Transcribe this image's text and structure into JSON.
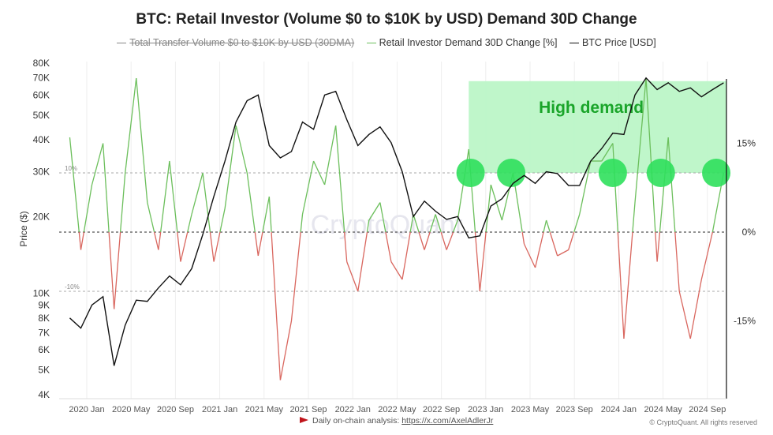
{
  "chart_data": {
    "type": "line",
    "title": "BTC: Retail Investor (Volume $0 to $10K by USD) Demand 30D Change",
    "legend": [
      {
        "name": "Total Transfer Volume  $0 to $10K by USD (30DMA)",
        "color": "#888888",
        "hidden": true
      },
      {
        "name": "Retail Investor Demand 30D Change [%]",
        "color": "#6cbf5c"
      },
      {
        "name": "BTC Price [USD]",
        "color": "#111111"
      }
    ],
    "legend_position": "top",
    "ylabel": "Price ($)",
    "y_scale": "log",
    "ylim": [
      4000,
      80000
    ],
    "y_ticks": [
      "80K",
      "70K",
      "60K",
      "50K",
      "40K",
      "30K",
      "20K",
      "10K",
      "9K",
      "8K",
      "7K",
      "6K",
      "5K",
      "4K"
    ],
    "y_tick_values": [
      80000,
      70000,
      60000,
      50000,
      40000,
      30000,
      20000,
      10000,
      9000,
      8000,
      7000,
      6000,
      5000,
      4000
    ],
    "y2lim": [
      -24,
      28
    ],
    "y2_ticks": [
      "15%",
      "0%",
      "-15%"
    ],
    "y2_tick_values": [
      15,
      0,
      -15
    ],
    "reference_lines": [
      {
        "value": 10,
        "label": "10%"
      },
      {
        "value": 0,
        "label": ""
      },
      {
        "value": -10,
        "label": "-10%"
      }
    ],
    "x_ticks": [
      "2020 Jan",
      "2020 May",
      "2020 Sep",
      "2021 Jan",
      "2021 May",
      "2021 Sep",
      "2022 Jan",
      "2022 May",
      "2022 Sep",
      "2023 Jan",
      "2023 May",
      "2023 Sep",
      "2024 Jan",
      "2024 May",
      "2024 Sep"
    ],
    "x_tick_dates": [
      "2020-01",
      "2020-05",
      "2020-09",
      "2021-01",
      "2021-05",
      "2021-09",
      "2022-01",
      "2022-05",
      "2022-09",
      "2023-01",
      "2023-05",
      "2023-09",
      "2024-01",
      "2024-05",
      "2024-09"
    ],
    "xlim": [
      "2019-11-15",
      "2024-10-15"
    ],
    "positive_color": "#6cbf5c",
    "negative_color": "#d9675f",
    "btc_price": {
      "dates": [
        "2019-11",
        "2019-12",
        "2020-01",
        "2020-02",
        "2020-03",
        "2020-04",
        "2020-05",
        "2020-06",
        "2020-07",
        "2020-08",
        "2020-09",
        "2020-10",
        "2020-11",
        "2020-12",
        "2021-01",
        "2021-02",
        "2021-03",
        "2021-04",
        "2021-05",
        "2021-06",
        "2021-07",
        "2021-08",
        "2021-09",
        "2021-10",
        "2021-11",
        "2021-12",
        "2022-01",
        "2022-02",
        "2022-03",
        "2022-04",
        "2022-05",
        "2022-06",
        "2022-07",
        "2022-08",
        "2022-09",
        "2022-10",
        "2022-11",
        "2022-12",
        "2023-01",
        "2023-02",
        "2023-03",
        "2023-04",
        "2023-05",
        "2023-06",
        "2023-07",
        "2023-08",
        "2023-09",
        "2023-10",
        "2023-11",
        "2023-12",
        "2024-01",
        "2024-02",
        "2024-03",
        "2024-04",
        "2024-05",
        "2024-06",
        "2024-07",
        "2024-08",
        "2024-09",
        "2024-10"
      ],
      "values": [
        8000,
        7300,
        9000,
        9700,
        5200,
        7500,
        9400,
        9300,
        10500,
        11700,
        10800,
        12500,
        17000,
        24000,
        33000,
        47000,
        57000,
        60000,
        38000,
        34000,
        36000,
        47000,
        44000,
        60000,
        62000,
        48000,
        38000,
        42000,
        45000,
        39000,
        30000,
        20000,
        23000,
        21000,
        19500,
        20000,
        16500,
        16800,
        22000,
        23500,
        27000,
        29000,
        27000,
        30000,
        29500,
        26500,
        26500,
        33000,
        37000,
        42500,
        42000,
        60000,
        70000,
        63000,
        67000,
        62000,
        64000,
        59000,
        63000,
        67000
      ]
    },
    "demand_change": {
      "dates": [
        "2019-11",
        "2019-12",
        "2020-01",
        "2020-02",
        "2020-03",
        "2020-04",
        "2020-05",
        "2020-06",
        "2020-07",
        "2020-08",
        "2020-09",
        "2020-10",
        "2020-11",
        "2020-12",
        "2021-01",
        "2021-02",
        "2021-03",
        "2021-04",
        "2021-05",
        "2021-06",
        "2021-07",
        "2021-08",
        "2021-09",
        "2021-10",
        "2021-11",
        "2021-12",
        "2022-01",
        "2022-02",
        "2022-03",
        "2022-04",
        "2022-05",
        "2022-06",
        "2022-07",
        "2022-08",
        "2022-09",
        "2022-10",
        "2022-11",
        "2022-12",
        "2023-01",
        "2023-02",
        "2023-03",
        "2023-04",
        "2023-05",
        "2023-06",
        "2023-07",
        "2023-08",
        "2023-09",
        "2023-10",
        "2023-11",
        "2023-12",
        "2024-01",
        "2024-02",
        "2024-03",
        "2024-04",
        "2024-05",
        "2024-06",
        "2024-07",
        "2024-08",
        "2024-09",
        "2024-10"
      ],
      "values": [
        16,
        -3,
        8,
        15,
        -13,
        10,
        26,
        5,
        -3,
        12,
        -5,
        3,
        10,
        -5,
        4,
        18,
        10,
        -4,
        6,
        -25,
        -15,
        3,
        12,
        8,
        18,
        -5,
        -10,
        2,
        5,
        -5,
        -8,
        3,
        -3,
        3,
        -3,
        2,
        14,
        -10,
        8,
        2,
        10,
        -2,
        -6,
        2,
        -4,
        -3,
        3,
        12,
        12,
        15,
        -18,
        5,
        26,
        -5,
        16,
        -10,
        -18,
        -8,
        0,
        10
      ]
    },
    "annotation": {
      "text": "High demand",
      "x_from": "2022-11-15",
      "x_to": "2024-10-15",
      "y_from": 10,
      "y_to": 25.5,
      "color": "#1aa52a",
      "fill": "#b8f5c4"
    },
    "highlight_points": [
      {
        "date": "2022-11-20",
        "value": 10
      },
      {
        "date": "2023-03-10",
        "value": 10
      },
      {
        "date": "2023-12-15",
        "value": 10
      },
      {
        "date": "2024-04-25",
        "value": 10
      },
      {
        "date": "2024-09-25",
        "value": 10
      }
    ],
    "highlight_color": "#2fe05c",
    "watermark": "CryptoQuant"
  },
  "footer": {
    "text": "Daily on-chain analysis: ",
    "link": "https://x.com/AxelAdlerJr",
    "copyright": "© CryptoQuant. All rights reserved"
  }
}
